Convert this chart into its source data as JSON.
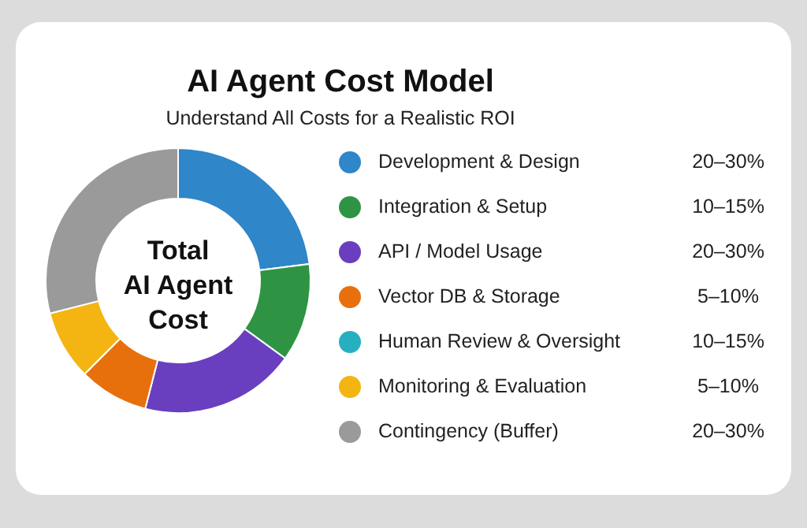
{
  "chart_data": {
    "type": "donut",
    "title": "AI Agent Cost Model",
    "subtitle": "Understand All Costs for a Realistic ROI",
    "categories": [
      "Development & Design",
      "Integration & Setup",
      "API / Model Usage",
      "Vector DB & Storage",
      "Human Review & Oversight",
      "Monitoring & Evaluation",
      "Contingency (Buffer)"
    ],
    "values": [
      23,
      12,
      19,
      8.5,
      0,
      8.5,
      29
    ],
    "colors": [
      "#2f86c8",
      "#2e9444",
      "#6a3fbf",
      "#e8700c",
      "#26b0bf",
      "#f4b512",
      "#9a9a9a"
    ],
    "annotations": [
      "Total AI Agent Cost",
      "20–30%",
      "10–15%",
      "20–30%",
      "5–10%",
      "10–15%",
      "5–10%",
      "20–30%"
    ],
    "legend": "right"
  }
}
